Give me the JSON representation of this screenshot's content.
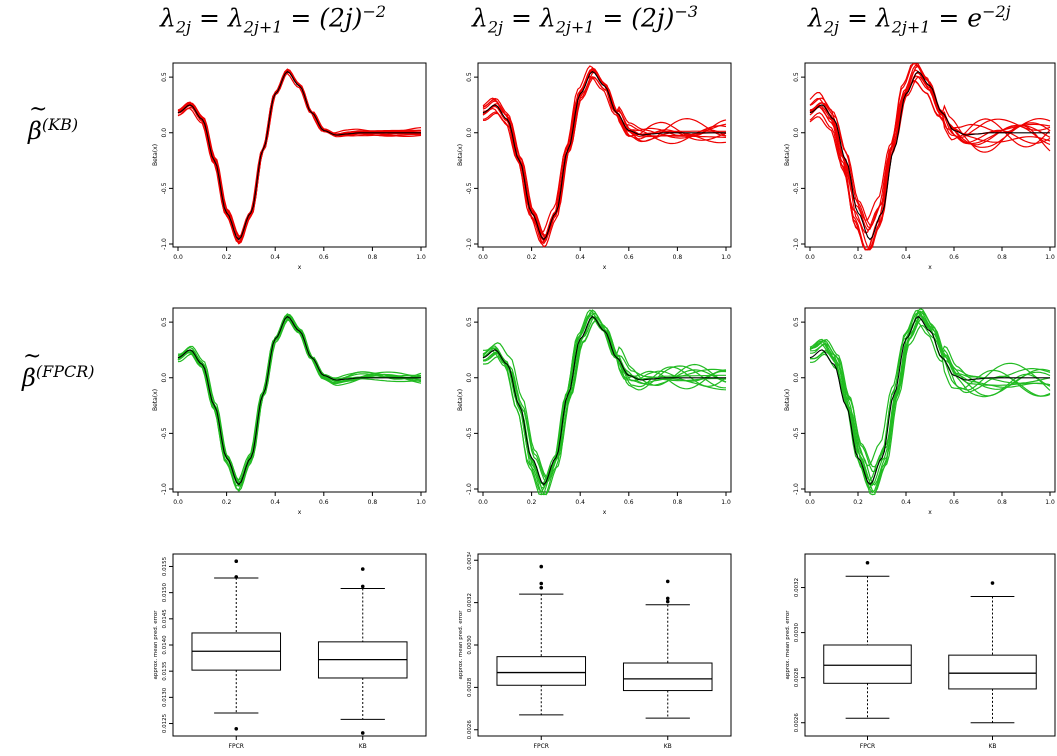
{
  "titles": {
    "col1": {
      "lhs": "λ",
      "sub1": "2j",
      "mid": " = λ",
      "sub2": "2j+1",
      "rhs": " = (2j)",
      "sup": "−2"
    },
    "col2": {
      "lhs": "λ",
      "sub1": "2j",
      "mid": " = λ",
      "sub2": "2j+1",
      "rhs": " = (2j)",
      "sup": "−3"
    },
    "col3": {
      "lhs": "λ",
      "sub1": "2j",
      "mid": " = λ",
      "sub2": "2j+1",
      "rhs": " = e",
      "sup": "−2j"
    }
  },
  "row_labels": {
    "kb": {
      "base": "β",
      "sup": "(KB)"
    },
    "fpcr": {
      "base": "β",
      "sup": "(FPCR)"
    }
  },
  "colors": {
    "kb": "#ee0000",
    "fpcr": "#22bb22",
    "truth": "#000000"
  },
  "chart_data": [
    {
      "type": "line",
      "panel": "kb-col1",
      "xlabel": "x",
      "ylabel": "Beta(x)",
      "xlim": [
        0,
        1
      ],
      "ylim": [
        -1,
        0.6
      ],
      "xticks": [
        "0.0",
        "0.2",
        "0.4",
        "0.6",
        "0.8",
        "1.0"
      ],
      "yticks": [
        "-1.0",
        "-0.5",
        "0.0",
        "0.5"
      ],
      "series_color": "kb",
      "n_estimates": 10,
      "variance": 0.35,
      "truth_x": [
        0,
        0.05,
        0.1,
        0.15,
        0.2,
        0.25,
        0.3,
        0.35,
        0.4,
        0.45,
        0.5,
        0.55,
        0.6,
        0.65,
        0.7,
        0.75,
        0.8,
        0.85,
        0.9,
        0.95,
        1.0
      ],
      "truth_y": [
        0.18,
        0.25,
        0.12,
        -0.25,
        -0.72,
        -0.96,
        -0.72,
        -0.15,
        0.35,
        0.55,
        0.42,
        0.18,
        0.02,
        -0.02,
        -0.01,
        0,
        0,
        0,
        0,
        0,
        0
      ]
    },
    {
      "type": "line",
      "panel": "kb-col2",
      "xlabel": "x",
      "ylabel": "Beta(x)",
      "xlim": [
        0,
        1
      ],
      "ylim": [
        -1,
        0.6
      ],
      "xticks": [
        "0.0",
        "0.2",
        "0.4",
        "0.6",
        "0.8",
        "1.0"
      ],
      "yticks": [
        "-1.0",
        "-0.5",
        "0.0",
        "0.5"
      ],
      "series_color": "kb",
      "n_estimates": 10,
      "variance": 0.75,
      "truth_x": [
        0,
        0.05,
        0.1,
        0.15,
        0.2,
        0.25,
        0.3,
        0.35,
        0.4,
        0.45,
        0.5,
        0.55,
        0.6,
        0.65,
        0.7,
        0.75,
        0.8,
        0.85,
        0.9,
        0.95,
        1.0
      ],
      "truth_y": [
        0.18,
        0.25,
        0.12,
        -0.25,
        -0.72,
        -0.96,
        -0.72,
        -0.15,
        0.35,
        0.55,
        0.42,
        0.18,
        0.02,
        -0.02,
        -0.01,
        0,
        0,
        0,
        0,
        0,
        0
      ]
    },
    {
      "type": "line",
      "panel": "kb-col3",
      "xlabel": "x",
      "ylabel": "Beta(x)",
      "xlim": [
        0,
        1
      ],
      "ylim": [
        -1,
        0.6
      ],
      "xticks": [
        "0.0",
        "0.2",
        "0.4",
        "0.6",
        "0.8",
        "1.0"
      ],
      "yticks": [
        "-1.0",
        "-0.5",
        "0.0",
        "0.5"
      ],
      "series_color": "kb",
      "n_estimates": 10,
      "variance": 1.3,
      "truth_x": [
        0,
        0.05,
        0.1,
        0.15,
        0.2,
        0.25,
        0.3,
        0.35,
        0.4,
        0.45,
        0.5,
        0.55,
        0.6,
        0.65,
        0.7,
        0.75,
        0.8,
        0.85,
        0.9,
        0.95,
        1.0
      ],
      "truth_y": [
        0.18,
        0.25,
        0.12,
        -0.25,
        -0.72,
        -0.96,
        -0.72,
        -0.15,
        0.35,
        0.55,
        0.42,
        0.18,
        0.02,
        -0.02,
        -0.01,
        0,
        0,
        0,
        0,
        0,
        0
      ]
    },
    {
      "type": "line",
      "panel": "fpcr-col1",
      "xlabel": "x",
      "ylabel": "Beta(x)",
      "xlim": [
        0,
        1
      ],
      "ylim": [
        -1,
        0.6
      ],
      "xticks": [
        "0.0",
        "0.2",
        "0.4",
        "0.6",
        "0.8",
        "1.0"
      ],
      "yticks": [
        "-1.0",
        "-0.5",
        "0.0",
        "0.5"
      ],
      "series_color": "fpcr",
      "n_estimates": 10,
      "variance": 0.4,
      "truth_x": [
        0,
        0.05,
        0.1,
        0.15,
        0.2,
        0.25,
        0.3,
        0.35,
        0.4,
        0.45,
        0.5,
        0.55,
        0.6,
        0.65,
        0.7,
        0.75,
        0.8,
        0.85,
        0.9,
        0.95,
        1.0
      ],
      "truth_y": [
        0.18,
        0.25,
        0.12,
        -0.25,
        -0.72,
        -0.96,
        -0.72,
        -0.15,
        0.35,
        0.55,
        0.42,
        0.18,
        0.02,
        -0.02,
        -0.01,
        0,
        0,
        0,
        0,
        0,
        0
      ]
    },
    {
      "type": "line",
      "panel": "fpcr-col2",
      "xlabel": "x",
      "ylabel": "Beta(x)",
      "xlim": [
        0,
        1
      ],
      "ylim": [
        -1,
        0.6
      ],
      "xticks": [
        "0.0",
        "0.2",
        "0.4",
        "0.6",
        "0.8",
        "1.0"
      ],
      "yticks": [
        "-1.0",
        "-0.5",
        "0.0",
        "0.5"
      ],
      "series_color": "fpcr",
      "n_estimates": 10,
      "variance": 0.95,
      "truth_x": [
        0,
        0.05,
        0.1,
        0.15,
        0.2,
        0.25,
        0.3,
        0.35,
        0.4,
        0.45,
        0.5,
        0.55,
        0.6,
        0.65,
        0.7,
        0.75,
        0.8,
        0.85,
        0.9,
        0.95,
        1.0
      ],
      "truth_y": [
        0.18,
        0.25,
        0.12,
        -0.25,
        -0.72,
        -0.96,
        -0.72,
        -0.15,
        0.35,
        0.55,
        0.42,
        0.18,
        0.02,
        -0.02,
        -0.01,
        0,
        0,
        0,
        0,
        0,
        0
      ]
    },
    {
      "type": "line",
      "panel": "fpcr-col3",
      "xlabel": "x",
      "ylabel": "Beta(x)",
      "xlim": [
        0,
        1
      ],
      "ylim": [
        -1,
        0.6
      ],
      "xticks": [
        "0.0",
        "0.2",
        "0.4",
        "0.6",
        "0.8",
        "1.0"
      ],
      "yticks": [
        "-1.0",
        "-0.5",
        "0.0",
        "0.5"
      ],
      "series_color": "fpcr",
      "n_estimates": 10,
      "variance": 1.3,
      "truth_x": [
        0,
        0.05,
        0.1,
        0.15,
        0.2,
        0.25,
        0.3,
        0.35,
        0.4,
        0.45,
        0.5,
        0.55,
        0.6,
        0.65,
        0.7,
        0.75,
        0.8,
        0.85,
        0.9,
        0.95,
        1.0
      ],
      "truth_y": [
        0.18,
        0.25,
        0.12,
        -0.25,
        -0.72,
        -0.96,
        -0.72,
        -0.15,
        0.35,
        0.55,
        0.42,
        0.18,
        0.02,
        -0.02,
        -0.01,
        0,
        0,
        0,
        0,
        0,
        0
      ]
    },
    {
      "type": "box",
      "panel": "box-col1",
      "ylabel": "approx. mean pred. error",
      "categories": [
        "FPCR",
        "KB"
      ],
      "ylim": [
        0.0123,
        0.0157
      ],
      "yticks": [
        0.0125,
        0.013,
        0.0135,
        0.014,
        0.0145,
        0.015,
        0.0155
      ],
      "ytick_labels": [
        "0.0125",
        "0.0130",
        "0.0135",
        "0.0140",
        "0.0145",
        "0.0150",
        "0.0155"
      ],
      "boxes": [
        {
          "min": 0.0127,
          "q1": 0.01352,
          "median": 0.01388,
          "q3": 0.01423,
          "max": 0.01528,
          "outliers": [
            0.0156,
            0.0153,
            0.0124
          ]
        },
        {
          "min": 0.01258,
          "q1": 0.01337,
          "median": 0.01372,
          "q3": 0.01406,
          "max": 0.01508,
          "outliers": [
            0.01545,
            0.01512,
            0.01232
          ]
        }
      ]
    },
    {
      "type": "box",
      "panel": "box-col2",
      "ylabel": "approx. mean pred. error",
      "categories": [
        "FPCR",
        "KB"
      ],
      "ylim": [
        0.00258,
        0.00342
      ],
      "yticks": [
        0.0026,
        0.0028,
        0.003,
        0.0032,
        0.0034
      ],
      "ytick_labels": [
        "0.0026",
        "0.0028",
        "0.0030",
        "0.0032",
        "0.0034"
      ],
      "boxes": [
        {
          "min": 0.00267,
          "q1": 0.00281,
          "median": 0.00287,
          "q3": 0.002945,
          "max": 0.00324,
          "outliers": [
            0.00337,
            0.00329,
            0.00327
          ]
        },
        {
          "min": 0.002655,
          "q1": 0.002785,
          "median": 0.00284,
          "q3": 0.002915,
          "max": 0.00319,
          "outliers": [
            0.0033,
            0.00322,
            0.003205
          ]
        }
      ]
    },
    {
      "type": "box",
      "panel": "box-col3",
      "ylabel": "approx. mean pred. error",
      "categories": [
        "FPCR",
        "KB"
      ],
      "ylim": [
        0.00255,
        0.00334
      ],
      "yticks": [
        0.0026,
        0.0028,
        0.003,
        0.0032
      ],
      "ytick_labels": [
        "0.0026",
        "0.0028",
        "0.0030",
        "0.0032"
      ],
      "boxes": [
        {
          "min": 0.00262,
          "q1": 0.002775,
          "median": 0.002855,
          "q3": 0.002945,
          "max": 0.00325,
          "outliers": [
            0.00331
          ]
        },
        {
          "min": 0.0026,
          "q1": 0.00275,
          "median": 0.00282,
          "q3": 0.0029,
          "max": 0.00316,
          "outliers": [
            0.00322
          ]
        }
      ]
    }
  ]
}
